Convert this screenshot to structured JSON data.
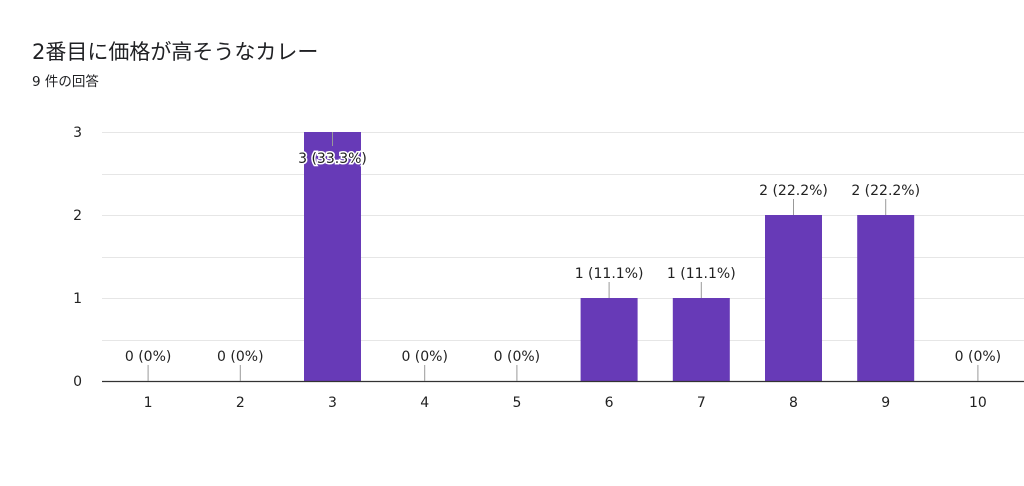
{
  "header": {
    "title": "2番目に価格が高そうなカレー",
    "response_count": "9 件の回答"
  },
  "colors": {
    "bar": "#673ab7",
    "grid": "#e6e6e6",
    "axis": "#333333",
    "text": "#222222"
  },
  "chart_data": {
    "type": "bar",
    "title": "",
    "xlabel": "",
    "ylabel": "",
    "categories": [
      "1",
      "2",
      "3",
      "4",
      "5",
      "6",
      "7",
      "8",
      "9",
      "10"
    ],
    "values": [
      0,
      0,
      3,
      0,
      0,
      1,
      1,
      2,
      2,
      0
    ],
    "data_labels": [
      "0 (0%)",
      "0 (0%)",
      "3 (33.3%)",
      "0 (0%)",
      "0 (0%)",
      "1 (11.1%)",
      "1 (11.1%)",
      "2 (22.2%)",
      "2 (22.2%)",
      "0 (0%)"
    ],
    "yticks": [
      "0",
      "1",
      "2",
      "3"
    ],
    "ylim": [
      0,
      3
    ],
    "grid": true,
    "legend": "none"
  }
}
